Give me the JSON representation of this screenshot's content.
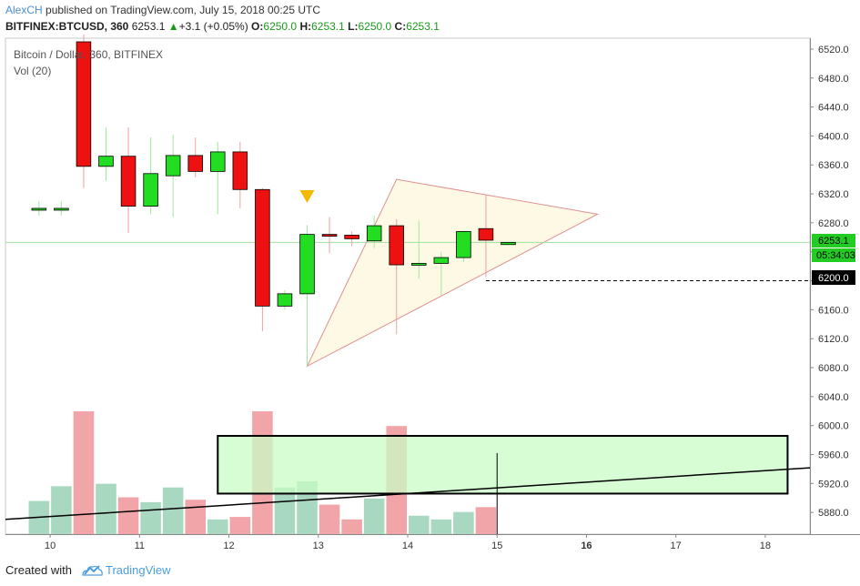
{
  "header": {
    "author": "AlexCH",
    "published_text": "published on TradingView.com, July 15, 2018 00:25 UTC",
    "symbol": "BITFINEX:BTCUSD, 360",
    "last": "6253.1",
    "arrow": "▲",
    "change": "+3.1 (+0.05%)",
    "o_label": "O:",
    "o_value": "6250.0",
    "h_label": "H:",
    "h_value": "6253.1",
    "l_label": "L:",
    "l_value": "6250.0",
    "c_label": "C:",
    "c_value": "6253.1"
  },
  "legend": {
    "title": "Bitcoin / Dollar, 360, BITFINEX",
    "volume": "Vol (20)"
  },
  "price_tags": {
    "last": "6253.1",
    "countdown": "05:34:03",
    "level": "6200.0"
  },
  "footer": {
    "created_with": "Created with",
    "brand": "TradingView",
    "brand_icon": "tradingview-cloud-icon"
  },
  "colors": {
    "up": "#22dd22",
    "down": "#ee1111",
    "vol_up": "#a8d8c0",
    "vol_down": "#f2a5a8",
    "triangle_fill": "#fdf8e1",
    "triangle_stroke": "#e09090",
    "box_fill": "#c8fcc4",
    "marker": "#f5b800",
    "last_tag": "#22cc22",
    "level_tag": "#000000"
  },
  "chart_data": {
    "type": "candlestick",
    "ylim": [
      5850,
      6535
    ],
    "y_ticks": [
      5880,
      5920,
      5960,
      6000,
      6040,
      6080,
      6120,
      6160,
      6200,
      6240,
      6280,
      6320,
      6360,
      6400,
      6440,
      6480,
      6520
    ],
    "y_tick_labels": [
      "5880.0",
      "5920.0",
      "5960.0",
      "6000.0",
      "6040.0",
      "6080.0",
      "6120.0",
      "6160.0",
      "6200.0",
      "6240.0",
      "6280.0",
      "6320.0",
      "6360.0",
      "6400.0",
      "6440.0",
      "6480.0",
      "6520.0"
    ],
    "x_labels": [
      {
        "label": "10",
        "bar": 0.5,
        "bold": false
      },
      {
        "label": "11",
        "bar": 4.5,
        "bold": false
      },
      {
        "label": "12",
        "bar": 8.5,
        "bold": false
      },
      {
        "label": "13",
        "bar": 12.5,
        "bold": false
      },
      {
        "label": "14",
        "bar": 16.5,
        "bold": false
      },
      {
        "label": "15",
        "bar": 20.5,
        "bold": false
      },
      {
        "label": "16",
        "bar": 24.5,
        "bold": true
      },
      {
        "label": "17",
        "bar": 28.5,
        "bold": false
      },
      {
        "label": "18",
        "bar": 32.5,
        "bold": false
      }
    ],
    "bar_range": [
      -1.5,
      34.5
    ],
    "candles": [
      {
        "o": 6300,
        "h": 6310,
        "l": 6290,
        "c": 6300,
        "vol": 0.27
      },
      {
        "o": 6300,
        "h": 6310,
        "l": 6290,
        "c": 6300,
        "vol": 0.39
      },
      {
        "o": 6530,
        "h": 6540,
        "l": 6328,
        "c": 6358,
        "vol": 1.0
      },
      {
        "o": 6358,
        "h": 6412,
        "l": 6338,
        "c": 6372,
        "vol": 0.41
      },
      {
        "o": 6372,
        "h": 6412,
        "l": 6266,
        "c": 6303,
        "vol": 0.3
      },
      {
        "o": 6303,
        "h": 6398,
        "l": 6292,
        "c": 6348,
        "vol": 0.26
      },
      {
        "o": 6345,
        "h": 6402,
        "l": 6288,
        "c": 6373,
        "vol": 0.38
      },
      {
        "o": 6373,
        "h": 6398,
        "l": 6343,
        "c": 6351,
        "vol": 0.28
      },
      {
        "o": 6351,
        "h": 6392,
        "l": 6292,
        "c": 6378,
        "vol": 0.12
      },
      {
        "o": 6378,
        "h": 6392,
        "l": 6300,
        "c": 6326,
        "vol": 0.14
      },
      {
        "o": 6326,
        "h": 6328,
        "l": 6130,
        "c": 6165,
        "vol": 1.0
      },
      {
        "o": 6165,
        "h": 6187,
        "l": 6160,
        "c": 6182,
        "vol": 0.38
      },
      {
        "o": 6182,
        "h": 6277,
        "l": 6082,
        "c": 6264,
        "vol": 0.43
      },
      {
        "o": 6264,
        "h": 6288,
        "l": 6238,
        "c": 6263,
        "vol": 0.24
      },
      {
        "o": 6263,
        "h": 6268,
        "l": 6248,
        "c": 6258,
        "vol": 0.12
      },
      {
        "o": 6255,
        "h": 6290,
        "l": 6245,
        "c": 6276,
        "vol": 0.29
      },
      {
        "o": 6276,
        "h": 6285,
        "l": 6126,
        "c": 6222,
        "vol": 0.88
      },
      {
        "o": 6222,
        "h": 6283,
        "l": 6203,
        "c": 6224,
        "vol": 0.15
      },
      {
        "o": 6224,
        "h": 6240,
        "l": 6180,
        "c": 6232,
        "vol": 0.12
      },
      {
        "o": 6232,
        "h": 6268,
        "l": 6226,
        "c": 6268,
        "vol": 0.18
      },
      {
        "o": 6272,
        "h": 6318,
        "l": 6205,
        "c": 6256,
        "vol": 0.22
      },
      {
        "o": 6250,
        "h": 6254,
        "l": 6249,
        "c": 6253,
        "vol": 0
      }
    ],
    "marker": {
      "bar": 12,
      "price": 6300
    },
    "triangle": [
      {
        "bar": 12,
        "price": 6082
      },
      {
        "bar": 16,
        "price": 6340
      },
      {
        "bar": 25,
        "price": 6292
      }
    ],
    "horizontal_line": {
      "price": 6253
    },
    "dashed_level": {
      "price": 6200,
      "from_bar": 20
    },
    "volume_box": {
      "from_bar": 8,
      "to_bar": 33.5,
      "top": 0.8,
      "bottom": 0.33
    },
    "volume_trendline": {
      "from_bar": -1.5,
      "to_bar": 34.5,
      "from": 0.12,
      "to": 0.54
    },
    "vertical_marker": {
      "bar": 20.5,
      "top": 0.66
    }
  }
}
